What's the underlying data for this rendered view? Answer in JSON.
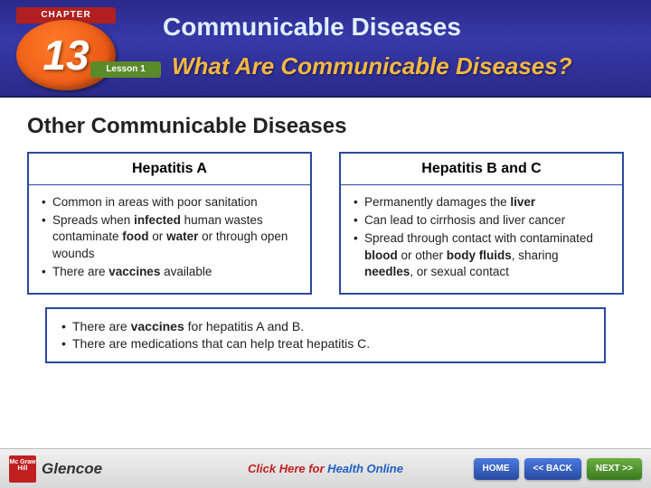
{
  "header": {
    "chapter_label": "CHAPTER",
    "chapter_number": "13",
    "lesson_label": "Lesson 1",
    "title": "Communicable Diseases",
    "subtitle": "What Are Communicable Diseases?"
  },
  "section_title": "Other Communicable Diseases",
  "colors": {
    "box_border": "#2a4aa0",
    "header_bg": "#2a2a8a",
    "accent_orange": "#e85a10",
    "accent_green": "#5a8a2a",
    "subtitle_gold": "#f5b840"
  },
  "left_box": {
    "title": "Hepatitis A",
    "items": [
      "Common in areas with poor sanitation",
      "Spreads when <b class='kw'>infected</b> human wastes contaminate <b class='kw'>food</b> or <b class='kw'>water</b> or through open wounds",
      "There are <b class='kw'>vaccines</b> available"
    ]
  },
  "right_box": {
    "title": "Hepatitis B and C",
    "items": [
      "Permanently damages the <b class='kw'>liver</b>",
      "Can lead to cirrhosis and liver cancer",
      "Spread through contact with contaminated <b class='kw'>blood</b> or other <b class='kw'>body fluids</b>, sharing <b class='kw'>needles</b>, or sexual contact"
    ]
  },
  "bottom_box": {
    "items": [
      "There are <b class='kw'>vaccines</b> for hepatitis A and B.",
      "There are medications that can help treat hepatitis C."
    ]
  },
  "footer": {
    "publisher_short": "Mc Graw Hill",
    "publisher": "Glencoe",
    "click_red": "Click Here for ",
    "click_blue": "Health Online",
    "home": "HOME",
    "back": "<< BACK",
    "next": "NEXT >>"
  }
}
